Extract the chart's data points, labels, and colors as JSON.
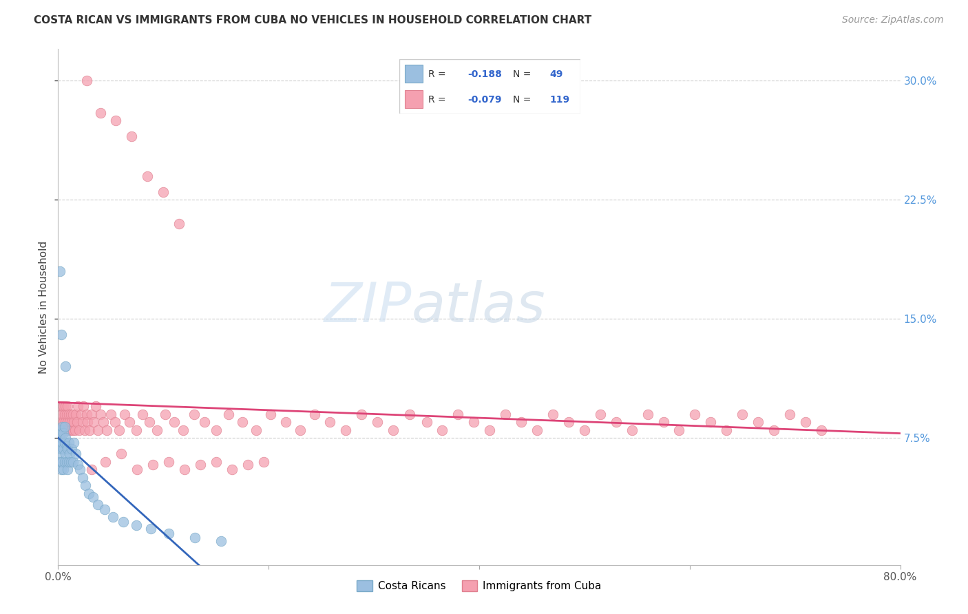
{
  "title": "COSTA RICAN VS IMMIGRANTS FROM CUBA NO VEHICLES IN HOUSEHOLD CORRELATION CHART",
  "source": "Source: ZipAtlas.com",
  "ylabel": "No Vehicles in Household",
  "xlim": [
    0.0,
    0.8
  ],
  "ylim": [
    -0.005,
    0.32
  ],
  "xtick_vals": [
    0.0,
    0.2,
    0.4,
    0.6,
    0.8
  ],
  "xtick_labels": [
    "0.0%",
    "",
    "",
    "",
    "80.0%"
  ],
  "ytick_vals": [
    0.075,
    0.15,
    0.225,
    0.3
  ],
  "ytick_labels": [
    "7.5%",
    "15.0%",
    "22.5%",
    "30.0%"
  ],
  "blue_color": "#9BBFE0",
  "blue_edge": "#7AAAC8",
  "pink_color": "#F5A0B0",
  "pink_edge": "#E08090",
  "blue_line_color": "#3366BB",
  "pink_line_color": "#DD4477",
  "watermark_zip": "ZIP",
  "watermark_atlas": "atlas",
  "bg_color": "#FFFFFF",
  "grid_color": "#CCCCCC",
  "legend_box_color": "#DDDDDD",
  "R1": "-0.188",
  "N1": "49",
  "R2": "-0.079",
  "N2": "119",
  "blue_x": [
    0.001,
    0.001,
    0.002,
    0.002,
    0.002,
    0.003,
    0.003,
    0.003,
    0.004,
    0.004,
    0.004,
    0.005,
    0.005,
    0.005,
    0.006,
    0.006,
    0.006,
    0.007,
    0.007,
    0.008,
    0.008,
    0.009,
    0.009,
    0.01,
    0.01,
    0.011,
    0.012,
    0.013,
    0.014,
    0.015,
    0.017,
    0.019,
    0.021,
    0.023,
    0.026,
    0.029,
    0.033,
    0.038,
    0.044,
    0.052,
    0.062,
    0.074,
    0.088,
    0.105,
    0.13,
    0.155,
    0.002,
    0.003,
    0.007
  ],
  "blue_y": [
    0.065,
    0.075,
    0.06,
    0.07,
    0.08,
    0.055,
    0.068,
    0.078,
    0.06,
    0.072,
    0.082,
    0.055,
    0.068,
    0.078,
    0.06,
    0.072,
    0.082,
    0.065,
    0.075,
    0.06,
    0.07,
    0.055,
    0.068,
    0.06,
    0.072,
    0.065,
    0.06,
    0.068,
    0.06,
    0.072,
    0.065,
    0.058,
    0.055,
    0.05,
    0.045,
    0.04,
    0.038,
    0.033,
    0.03,
    0.025,
    0.022,
    0.02,
    0.018,
    0.015,
    0.012,
    0.01,
    0.18,
    0.14,
    0.12
  ],
  "pink_x": [
    0.001,
    0.001,
    0.002,
    0.002,
    0.003,
    0.003,
    0.004,
    0.004,
    0.005,
    0.005,
    0.006,
    0.006,
    0.007,
    0.007,
    0.008,
    0.008,
    0.009,
    0.009,
    0.01,
    0.01,
    0.011,
    0.012,
    0.012,
    0.013,
    0.014,
    0.014,
    0.015,
    0.016,
    0.017,
    0.018,
    0.019,
    0.02,
    0.022,
    0.023,
    0.024,
    0.025,
    0.027,
    0.028,
    0.03,
    0.032,
    0.034,
    0.036,
    0.038,
    0.04,
    0.043,
    0.046,
    0.05,
    0.054,
    0.058,
    0.063,
    0.068,
    0.074,
    0.08,
    0.087,
    0.094,
    0.102,
    0.11,
    0.119,
    0.129,
    0.139,
    0.15,
    0.162,
    0.175,
    0.188,
    0.202,
    0.216,
    0.23,
    0.244,
    0.258,
    0.273,
    0.288,
    0.303,
    0.318,
    0.334,
    0.35,
    0.365,
    0.38,
    0.395,
    0.41,
    0.425,
    0.44,
    0.455,
    0.47,
    0.485,
    0.5,
    0.515,
    0.53,
    0.545,
    0.56,
    0.575,
    0.59,
    0.605,
    0.62,
    0.635,
    0.65,
    0.665,
    0.68,
    0.695,
    0.71,
    0.725,
    0.032,
    0.045,
    0.06,
    0.075,
    0.09,
    0.105,
    0.12,
    0.135,
    0.15,
    0.165,
    0.18,
    0.195,
    0.027,
    0.04,
    0.055,
    0.07,
    0.085,
    0.1,
    0.115
  ],
  "pink_y": [
    0.085,
    0.095,
    0.08,
    0.09,
    0.085,
    0.095,
    0.08,
    0.09,
    0.085,
    0.095,
    0.08,
    0.09,
    0.085,
    0.095,
    0.08,
    0.09,
    0.085,
    0.095,
    0.08,
    0.09,
    0.085,
    0.08,
    0.09,
    0.085,
    0.08,
    0.09,
    0.085,
    0.08,
    0.09,
    0.085,
    0.095,
    0.08,
    0.09,
    0.085,
    0.095,
    0.08,
    0.09,
    0.085,
    0.08,
    0.09,
    0.085,
    0.095,
    0.08,
    0.09,
    0.085,
    0.08,
    0.09,
    0.085,
    0.08,
    0.09,
    0.085,
    0.08,
    0.09,
    0.085,
    0.08,
    0.09,
    0.085,
    0.08,
    0.09,
    0.085,
    0.08,
    0.09,
    0.085,
    0.08,
    0.09,
    0.085,
    0.08,
    0.09,
    0.085,
    0.08,
    0.09,
    0.085,
    0.08,
    0.09,
    0.085,
    0.08,
    0.09,
    0.085,
    0.08,
    0.09,
    0.085,
    0.08,
    0.09,
    0.085,
    0.08,
    0.09,
    0.085,
    0.08,
    0.09,
    0.085,
    0.08,
    0.09,
    0.085,
    0.08,
    0.09,
    0.085,
    0.08,
    0.09,
    0.085,
    0.08,
    0.055,
    0.06,
    0.065,
    0.055,
    0.058,
    0.06,
    0.055,
    0.058,
    0.06,
    0.055,
    0.058,
    0.06,
    0.3,
    0.28,
    0.275,
    0.265,
    0.24,
    0.23,
    0.21
  ],
  "title_fontsize": 11,
  "source_fontsize": 10,
  "axis_label_fontsize": 11,
  "tick_fontsize": 11
}
